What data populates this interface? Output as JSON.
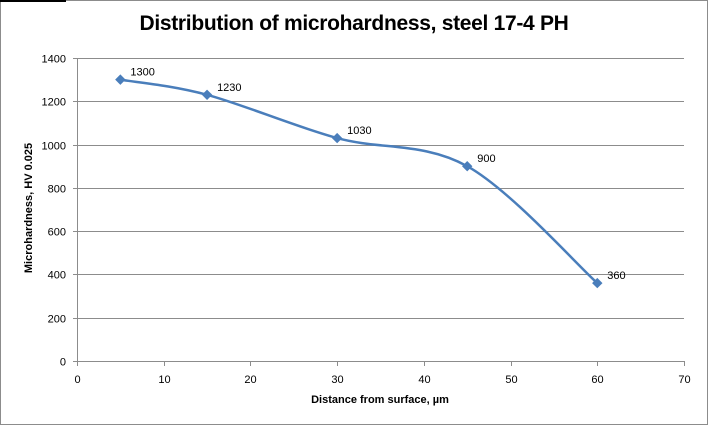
{
  "chart_data": {
    "type": "line",
    "title": "Distribution of microhardness, steel 17-4 PH",
    "xlabel": "Distance from surface, µm",
    "ylabel": "Microhardness, HV 0.025",
    "xlim": [
      0,
      70
    ],
    "ylim": [
      0,
      1400
    ],
    "x_ticks": [
      0,
      10,
      20,
      30,
      40,
      50,
      60,
      70
    ],
    "y_ticks": [
      0,
      200,
      400,
      600,
      800,
      1000,
      1200,
      1400
    ],
    "grid": "horizontal",
    "legend": "none",
    "smooth": true,
    "series": [
      {
        "x": [
          5,
          15,
          30,
          45,
          60
        ],
        "values": [
          1300,
          1230,
          1030,
          900,
          360
        ],
        "labels": [
          "1300",
          "1230",
          "1030",
          "900",
          "360"
        ],
        "color": "#4a7ebb"
      }
    ]
  }
}
